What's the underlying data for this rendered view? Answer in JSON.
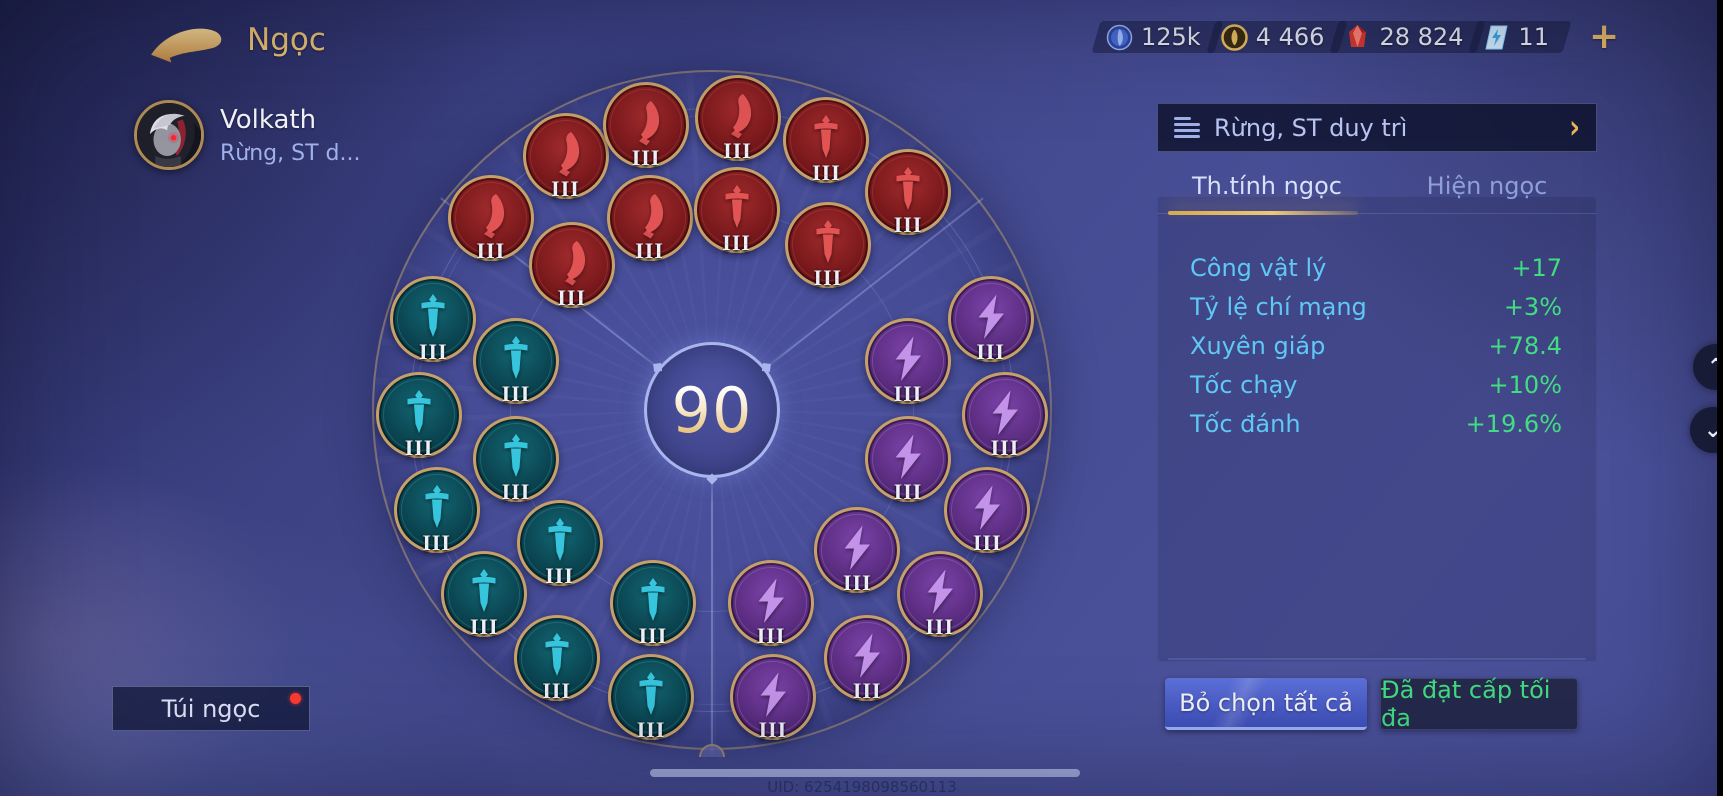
{
  "header": {
    "title": "Ngọc"
  },
  "hero": {
    "name": "Volkath",
    "role": "Rừng, ST d..."
  },
  "currencies": [
    {
      "icon": "magic-orb-icon",
      "value": "125k"
    },
    {
      "icon": "gold-coin-icon",
      "value": "4 466"
    },
    {
      "icon": "ruby-gem-icon",
      "value": "28 824"
    },
    {
      "icon": "rune-ticket-icon",
      "value": "11"
    }
  ],
  "currency_add_label": "+",
  "wheel": {
    "total_level": "90",
    "runes": [
      {
        "color": "red",
        "icon": "blade-icon",
        "ring": "outer",
        "angle": -49,
        "level": "III"
      },
      {
        "color": "red",
        "icon": "blade-icon",
        "ring": "outer",
        "angle": -30,
        "level": "III"
      },
      {
        "color": "red",
        "icon": "blade-icon",
        "ring": "outer",
        "angle": -13,
        "level": "III"
      },
      {
        "color": "red",
        "icon": "blade-icon",
        "ring": "outer",
        "angle": 5,
        "level": "III"
      },
      {
        "color": "red",
        "icon": "sword-icon",
        "ring": "outer",
        "angle": 23,
        "level": "III"
      },
      {
        "color": "red",
        "icon": "sword-icon",
        "ring": "outer",
        "angle": 42,
        "level": "III"
      },
      {
        "color": "red",
        "icon": "blade-icon",
        "ring": "inner",
        "angle": -44,
        "level": "III"
      },
      {
        "color": "red",
        "icon": "blade-icon",
        "ring": "inner",
        "angle": -18,
        "level": "III"
      },
      {
        "color": "red",
        "icon": "sword-icon",
        "ring": "inner",
        "angle": 7,
        "level": "III"
      },
      {
        "color": "red",
        "icon": "sword-icon",
        "ring": "inner",
        "angle": 35,
        "level": "III"
      },
      {
        "color": "teal",
        "icon": "sword-icon",
        "ring": "outer",
        "angle": -72,
        "level": "III"
      },
      {
        "color": "teal",
        "icon": "sword-icon",
        "ring": "outer",
        "angle": -91,
        "level": "III"
      },
      {
        "color": "teal",
        "icon": "sword-icon",
        "ring": "outer",
        "angle": -110,
        "level": "III"
      },
      {
        "color": "teal",
        "icon": "sword-icon",
        "ring": "outer",
        "angle": -129,
        "level": "III"
      },
      {
        "color": "teal",
        "icon": "sword-icon",
        "ring": "outer",
        "angle": -148,
        "level": "III"
      },
      {
        "color": "teal",
        "icon": "sword-icon",
        "ring": "outer",
        "angle": -168,
        "level": "III"
      },
      {
        "color": "teal",
        "icon": "sword-icon",
        "ring": "inner",
        "angle": -76,
        "level": "III"
      },
      {
        "color": "teal",
        "icon": "sword-icon",
        "ring": "inner",
        "angle": -104,
        "level": "III"
      },
      {
        "color": "teal",
        "icon": "sword-icon",
        "ring": "inner",
        "angle": -131,
        "level": "III"
      },
      {
        "color": "teal",
        "icon": "sword-icon",
        "ring": "inner",
        "angle": -163,
        "level": "III"
      },
      {
        "color": "purple",
        "icon": "lightning-icon",
        "ring": "outer",
        "angle": 72,
        "level": "III"
      },
      {
        "color": "purple",
        "icon": "lightning-icon",
        "ring": "outer",
        "angle": 91,
        "level": "III"
      },
      {
        "color": "purple",
        "icon": "lightning-icon",
        "ring": "outer",
        "angle": 110,
        "level": "III"
      },
      {
        "color": "purple",
        "icon": "lightning-icon",
        "ring": "outer",
        "angle": 129,
        "level": "III"
      },
      {
        "color": "purple",
        "icon": "lightning-icon",
        "ring": "outer",
        "angle": 148,
        "level": "III"
      },
      {
        "color": "purple",
        "icon": "lightning-icon",
        "ring": "outer",
        "angle": 168,
        "level": "III"
      },
      {
        "color": "purple",
        "icon": "lightning-icon",
        "ring": "inner",
        "angle": 76,
        "level": "III"
      },
      {
        "color": "purple",
        "icon": "lightning-icon",
        "ring": "inner",
        "angle": 104,
        "level": "III"
      },
      {
        "color": "purple",
        "icon": "lightning-icon",
        "ring": "inner",
        "angle": 134,
        "level": "III"
      },
      {
        "color": "purple",
        "icon": "lightning-icon",
        "ring": "inner",
        "angle": 163,
        "level": "III"
      }
    ]
  },
  "panel": {
    "preset": {
      "label": "Rừng, ST duy trì"
    },
    "tabs": [
      {
        "label": "Th.tính ngọc",
        "active": true
      },
      {
        "label": "Hiện ngọc",
        "active": false
      }
    ],
    "stats": [
      {
        "label": "Công vật lý",
        "value": "+17"
      },
      {
        "label": "Tỷ lệ chí mạng",
        "value": "+3%"
      },
      {
        "label": "Xuyên giáp",
        "value": "+78.4"
      },
      {
        "label": "Tốc chạy",
        "value": "+10%"
      },
      {
        "label": "Tốc đánh",
        "value": "+19.6%"
      }
    ],
    "buttons": {
      "deselect_all": "Bỏ chọn tất cả",
      "max_level": "Đã đạt cấp tối đa"
    }
  },
  "footer": {
    "bag_button": "Túi ngọc",
    "uid": "UID: 6254198098560113"
  },
  "colors": {
    "accent_gold": "#e8bd6e",
    "stat_label": "#5fc8f5",
    "stat_value": "#42dd82",
    "tab_active": "#d8e0fa",
    "tab_inactive": "#8f9fd8",
    "rune_red": "#7c1a1d",
    "rune_red_icon": "#e25354",
    "rune_teal": "#0b4652",
    "rune_teal_icon": "#36c5dd",
    "rune_purple": "#5d2e83",
    "rune_purple_icon": "#c393ea",
    "button_primary": "#4a5cc6",
    "notification_red": "#ff3b30"
  }
}
